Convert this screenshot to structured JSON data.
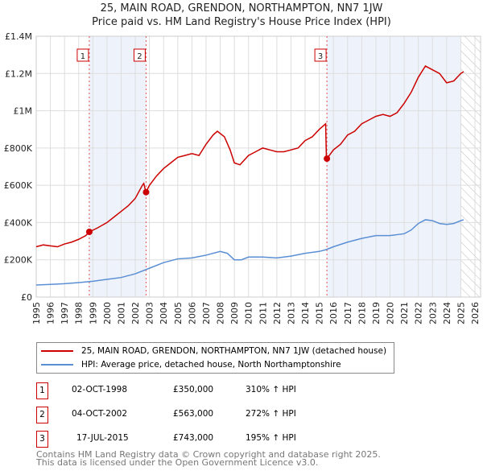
{
  "chart_data": {
    "type": "line",
    "title": "25, MAIN ROAD, GRENDON, NORTHAMPTON, NN7 1JW",
    "subtitle": "Price paid vs. HM Land Registry's House Price Index (HPI)",
    "xlim": [
      1995,
      2026
    ],
    "ylim": [
      0,
      1400000
    ],
    "xticks": [
      "1995",
      "1996",
      "1997",
      "1998",
      "1999",
      "2000",
      "2001",
      "2002",
      "2003",
      "2004",
      "2005",
      "2006",
      "2007",
      "2008",
      "2009",
      "2010",
      "2011",
      "2012",
      "2013",
      "2014",
      "2015",
      "2016",
      "2017",
      "2018",
      "2019",
      "2020",
      "2021",
      "2022",
      "2023",
      "2024",
      "2025",
      "2026"
    ],
    "yticks": [
      {
        "v": 0,
        "label": "£0"
      },
      {
        "v": 200000,
        "label": "£200K"
      },
      {
        "v": 400000,
        "label": "£400K"
      },
      {
        "v": 600000,
        "label": "£600K"
      },
      {
        "v": 800000,
        "label": "£800K"
      },
      {
        "v": 1000000,
        "label": "£1M"
      },
      {
        "v": 1200000,
        "label": "£1.2M"
      },
      {
        "v": 1400000,
        "label": "£1.4M"
      }
    ],
    "series": [
      {
        "name": "25, MAIN ROAD, GRENDON, NORTHAMPTON, NN7 1JW (detached house)",
        "color": "#cc0000",
        "x": [
          1995,
          1995.5,
          1996,
          1996.5,
          1997,
          1997.5,
          1998,
          1998.5,
          1998.75,
          1999.3,
          2000,
          2000.5,
          2001,
          2001.5,
          2002,
          2002.5,
          2002.6,
          2002.75,
          2003,
          2003.5,
          2004,
          2004.5,
          2005,
          2005.5,
          2006,
          2006.5,
          2007,
          2007.5,
          2007.8,
          2008.3,
          2008.7,
          2009,
          2009.4,
          2010,
          2010.5,
          2011,
          2011.5,
          2012,
          2012.5,
          2013,
          2013.5,
          2014,
          2014.5,
          2015,
          2015.45,
          2015.5,
          2015.54,
          2016,
          2016.5,
          2017,
          2017.5,
          2018,
          2018.5,
          2019,
          2019.5,
          2020,
          2020.5,
          2021,
          2021.5,
          2022,
          2022.5,
          2023,
          2023.5,
          2024,
          2024.5,
          2025,
          2025.2
        ],
        "y": [
          270000,
          280000,
          275000,
          270000,
          285000,
          295000,
          310000,
          330000,
          350000,
          370000,
          400000,
          430000,
          460000,
          490000,
          530000,
          600000,
          610000,
          563000,
          600000,
          650000,
          690000,
          720000,
          750000,
          760000,
          770000,
          760000,
          820000,
          870000,
          890000,
          860000,
          790000,
          720000,
          710000,
          760000,
          780000,
          800000,
          790000,
          780000,
          780000,
          790000,
          800000,
          840000,
          860000,
          900000,
          930000,
          760000,
          743000,
          790000,
          820000,
          870000,
          890000,
          930000,
          950000,
          970000,
          980000,
          970000,
          990000,
          1040000,
          1100000,
          1180000,
          1240000,
          1220000,
          1200000,
          1150000,
          1160000,
          1200000,
          1210000
        ]
      },
      {
        "name": "HPI: Average price, detached house, North Northamptonshire",
        "color": "#5b8fd4",
        "x": [
          1995,
          1996,
          1997,
          1998,
          1999,
          2000,
          2001,
          2002,
          2003,
          2004,
          2005,
          2006,
          2007,
          2008,
          2008.5,
          2009,
          2009.5,
          2010,
          2011,
          2012,
          2013,
          2014,
          2015,
          2015.5,
          2016,
          2017,
          2018,
          2019,
          2020,
          2021,
          2021.5,
          2022,
          2022.5,
          2023,
          2023.5,
          2024,
          2024.5,
          2025,
          2025.2
        ],
        "y": [
          65000,
          68000,
          72000,
          78000,
          85000,
          95000,
          105000,
          125000,
          155000,
          185000,
          205000,
          210000,
          225000,
          245000,
          235000,
          200000,
          200000,
          215000,
          215000,
          210000,
          220000,
          235000,
          245000,
          255000,
          270000,
          295000,
          315000,
          330000,
          330000,
          340000,
          360000,
          395000,
          415000,
          410000,
          395000,
          390000,
          395000,
          410000,
          415000
        ]
      }
    ],
    "sales": [
      {
        "id": "1",
        "date": "02-OCT-1998",
        "x": 1998.75,
        "price": "£350,000",
        "value": 350000,
        "hpi": "310% ↑ HPI"
      },
      {
        "id": "2",
        "date": "04-OCT-2002",
        "x": 2002.76,
        "price": "£563,000",
        "value": 563000,
        "hpi": "272% ↑ HPI"
      },
      {
        "id": "3",
        "date": "17-JUL-2015",
        "x": 2015.54,
        "price": "£743,000",
        "value": 743000,
        "hpi": "195% ↑ HPI"
      }
    ],
    "shaded": [
      [
        1998.75,
        2002.76
      ],
      [
        2015.54,
        2025.0
      ]
    ],
    "hatch_from": 2025.0
  },
  "footer": {
    "line1": "Contains HM Land Registry data © Crown copyright and database right 2025.",
    "line2": "This data is licensed under the Open Government Licence v3.0."
  },
  "colors": {
    "shade": "#eef3fb",
    "grid": "#dddddd"
  }
}
